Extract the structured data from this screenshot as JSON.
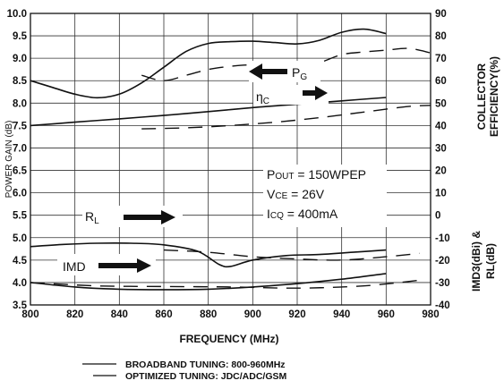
{
  "chart_data": {
    "type": "line",
    "xlabel": "FREQUENCY (MHz)",
    "ylabel_left": "POWER GAIN (dB)",
    "ylabel_right_top": [
      "COLLECTOR",
      "EFFICIENCY(%)"
    ],
    "ylabel_right_bottom": [
      "IMD3(dBi) &",
      "RL(dB)"
    ],
    "xlim": [
      800,
      980
    ],
    "x_ticks": [
      800,
      820,
      840,
      860,
      880,
      900,
      920,
      940,
      960,
      980
    ],
    "ylim_left": [
      3.5,
      10.0
    ],
    "y_left_ticks": [
      "3.5",
      "4.0",
      "4.5",
      "5.0",
      "5.5",
      "6.0",
      "6.5",
      "7.0",
      "7.5",
      "8.0",
      "8.5",
      "9.0",
      "9.5",
      "10.0"
    ],
    "ylim_right": [
      -40,
      90
    ],
    "y_right_ticks": [
      "-40",
      "-30",
      "-20",
      "-10",
      "0",
      "10",
      "20",
      "30",
      "40",
      "50",
      "60",
      "70",
      "80",
      "90"
    ],
    "grid": true,
    "conditions": {
      "pout_main": "P",
      "pout_sub": "OUT",
      "pout_val": " = 150WPEP",
      "vce_main": "V",
      "vce_sub": "CE",
      "vce_val": " = 26V",
      "icq_main": "I",
      "icq_sub": "CQ",
      "icq_val": " = 400mA"
    },
    "annotations": {
      "pg_main": "P",
      "pg_sub": "G",
      "eta_main": "η",
      "eta_sub": "C",
      "rl_main": "R",
      "rl_sub": "L",
      "imd": "IMD"
    },
    "legend": [
      {
        "label": "BROADBAND TUNING: 800-960MHz",
        "style": "solid"
      },
      {
        "label": "OPTIMIZED TUNING: JDC/ADC/GSM",
        "style": "solid"
      }
    ],
    "series": [
      {
        "axis": "left",
        "style": "solid",
        "x": [
          800,
          810,
          820,
          830,
          840,
          850,
          860,
          870,
          880,
          890,
          900,
          910,
          920,
          930,
          940,
          950,
          960
        ],
        "y": [
          8.5,
          8.35,
          8.2,
          8.12,
          8.2,
          8.45,
          8.8,
          9.15,
          9.33,
          9.37,
          9.38,
          9.35,
          9.32,
          9.4,
          9.58,
          9.65,
          9.55
        ]
      },
      {
        "axis": "left",
        "style": "dashed",
        "x": [
          850,
          860,
          870,
          880,
          890,
          900,
          910,
          920,
          930,
          940,
          950,
          960,
          970,
          980
        ],
        "y": [
          8.62,
          8.5,
          8.62,
          8.75,
          8.82,
          8.85,
          8.78,
          8.78,
          8.9,
          9.08,
          9.14,
          9.18,
          9.22,
          9.12
        ]
      },
      {
        "axis": "right",
        "style": "solid",
        "x": [
          800,
          820,
          840,
          860,
          880,
          900,
          920,
          940,
          960
        ],
        "y": [
          40,
          41.5,
          43,
          44.5,
          46.2,
          48,
          49.5,
          51,
          52.5
        ]
      },
      {
        "axis": "right",
        "style": "dashed",
        "x": [
          850,
          870,
          890,
          910,
          930,
          950,
          970,
          980
        ],
        "y": [
          38.5,
          39,
          40,
          41.5,
          43.5,
          46,
          48.5,
          49
        ]
      },
      {
        "axis": "right",
        "style": "solid",
        "x": [
          800,
          815,
          830,
          845,
          860,
          875,
          885,
          890,
          900,
          915,
          930,
          945,
          960
        ],
        "y": [
          -14,
          -13,
          -12.5,
          -12.5,
          -13.2,
          -16,
          -22,
          -22.8,
          -20,
          -18,
          -17.5,
          -16.5,
          -15.5
        ]
      },
      {
        "axis": "right",
        "style": "solid",
        "x": [
          800,
          820,
          840,
          860,
          880,
          900,
          920,
          940,
          960
        ],
        "y": [
          -30,
          -32,
          -33,
          -33.2,
          -33,
          -32,
          -30.5,
          -28.5,
          -26
        ]
      },
      {
        "axis": "right",
        "style": "dashed",
        "x": [
          860,
          880,
          900,
          920,
          940,
          960,
          975
        ],
        "y": [
          -15.5,
          -16.5,
          -18.5,
          -19.5,
          -20,
          -18.5,
          -17
        ]
      },
      {
        "axis": "right",
        "style": "dashed",
        "x": [
          800,
          830,
          860,
          890,
          920,
          950,
          975
        ],
        "y": [
          -30,
          -31.5,
          -31.8,
          -32,
          -32.5,
          -31.5,
          -29
        ]
      }
    ]
  }
}
